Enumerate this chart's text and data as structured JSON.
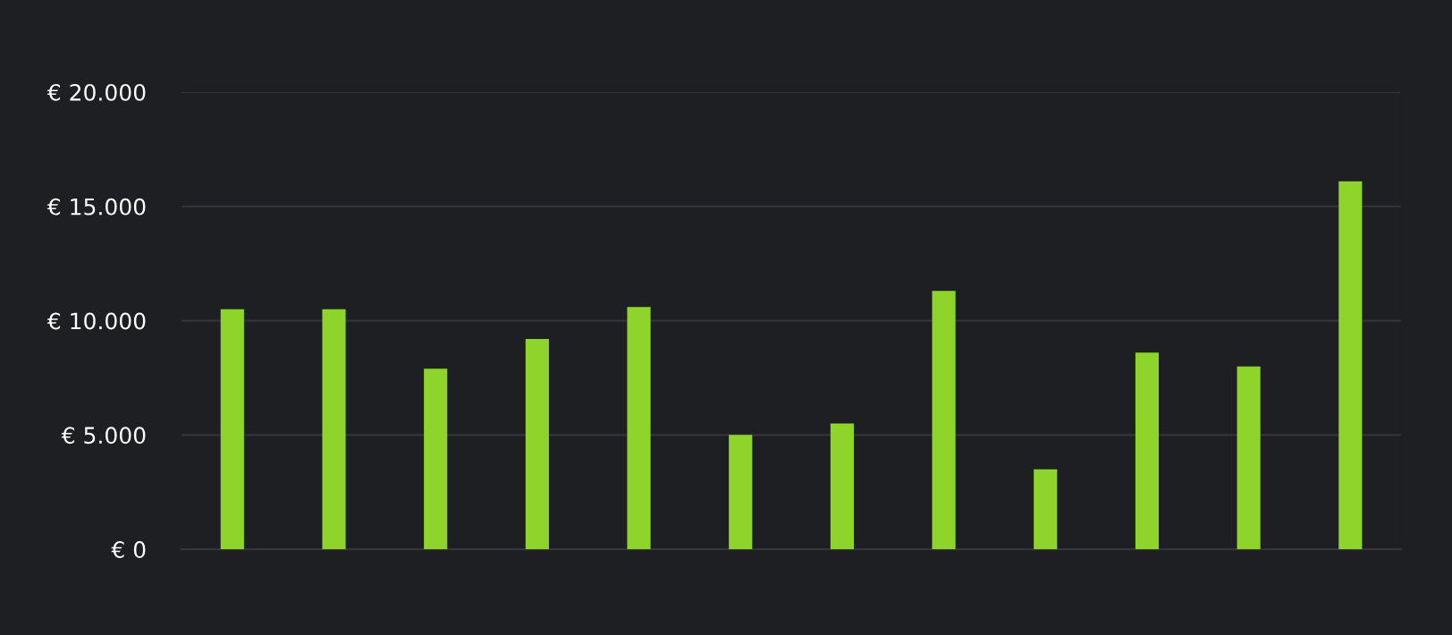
{
  "chart_data": {
    "type": "bar",
    "categories": [
      null,
      null,
      null,
      null,
      null,
      null,
      null,
      null,
      null,
      null,
      null,
      null
    ],
    "values": [
      10500,
      10500,
      7900,
      9200,
      10600,
      5000,
      5500,
      11300,
      3500,
      8600,
      8000,
      16100
    ],
    "color": "#8fd42a",
    "ylim": [
      0,
      20000
    ],
    "yticks": [
      {
        "value": 0,
        "label": "€ 0"
      },
      {
        "value": 5000,
        "label": "€ 5.000"
      },
      {
        "value": 10000,
        "label": "€ 10.000"
      },
      {
        "value": 15000,
        "label": "€ 15.000"
      },
      {
        "value": 20000,
        "label": "€ 20.000"
      }
    ],
    "grid": "y",
    "tick_labels": "y"
  }
}
